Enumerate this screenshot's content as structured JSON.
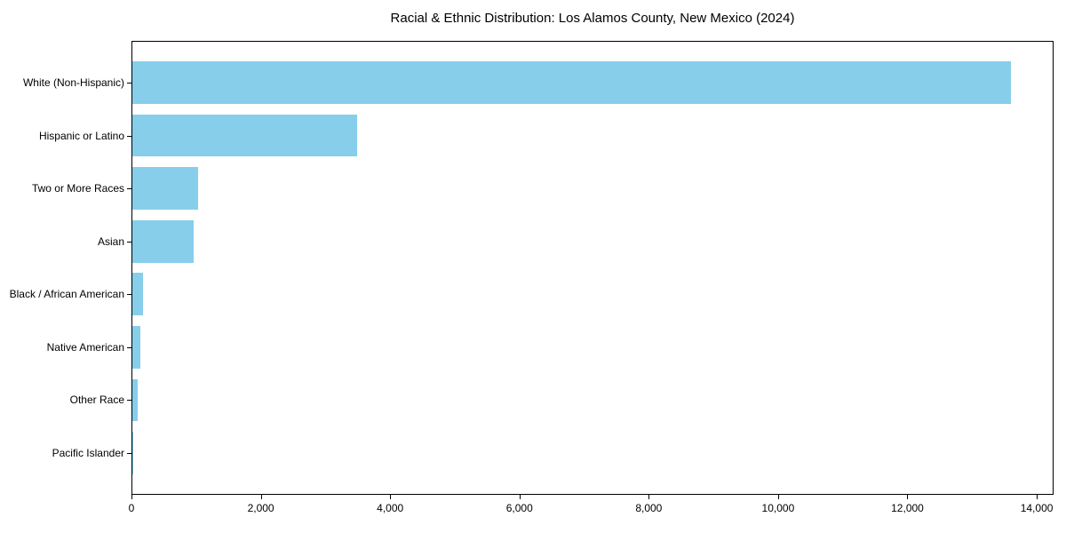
{
  "chart_data": {
    "type": "bar",
    "orientation": "horizontal",
    "title": "Racial & Ethnic Distribution: Los Alamos County, New Mexico (2024)",
    "xlabel": "",
    "ylabel": "",
    "categories": [
      "White (Non-Hispanic)",
      "Hispanic or Latino",
      "Two or More Races",
      "Asian",
      "Black / African American",
      "Native American",
      "Other Race",
      "Pacific Islander"
    ],
    "values": [
      13580,
      3480,
      1010,
      950,
      165,
      130,
      85,
      20
    ],
    "xlim": [
      0,
      14260
    ],
    "xticks": [
      0,
      2000,
      4000,
      6000,
      8000,
      10000,
      12000,
      14000
    ],
    "xtick_labels": [
      "0",
      "2,000",
      "4,000",
      "6,000",
      "8,000",
      "10,000",
      "12,000",
      "14,000"
    ],
    "bar_color": "#87CEEB",
    "text_color": "#000000",
    "background_color": "#ffffff",
    "grid": false,
    "legend": "none"
  }
}
